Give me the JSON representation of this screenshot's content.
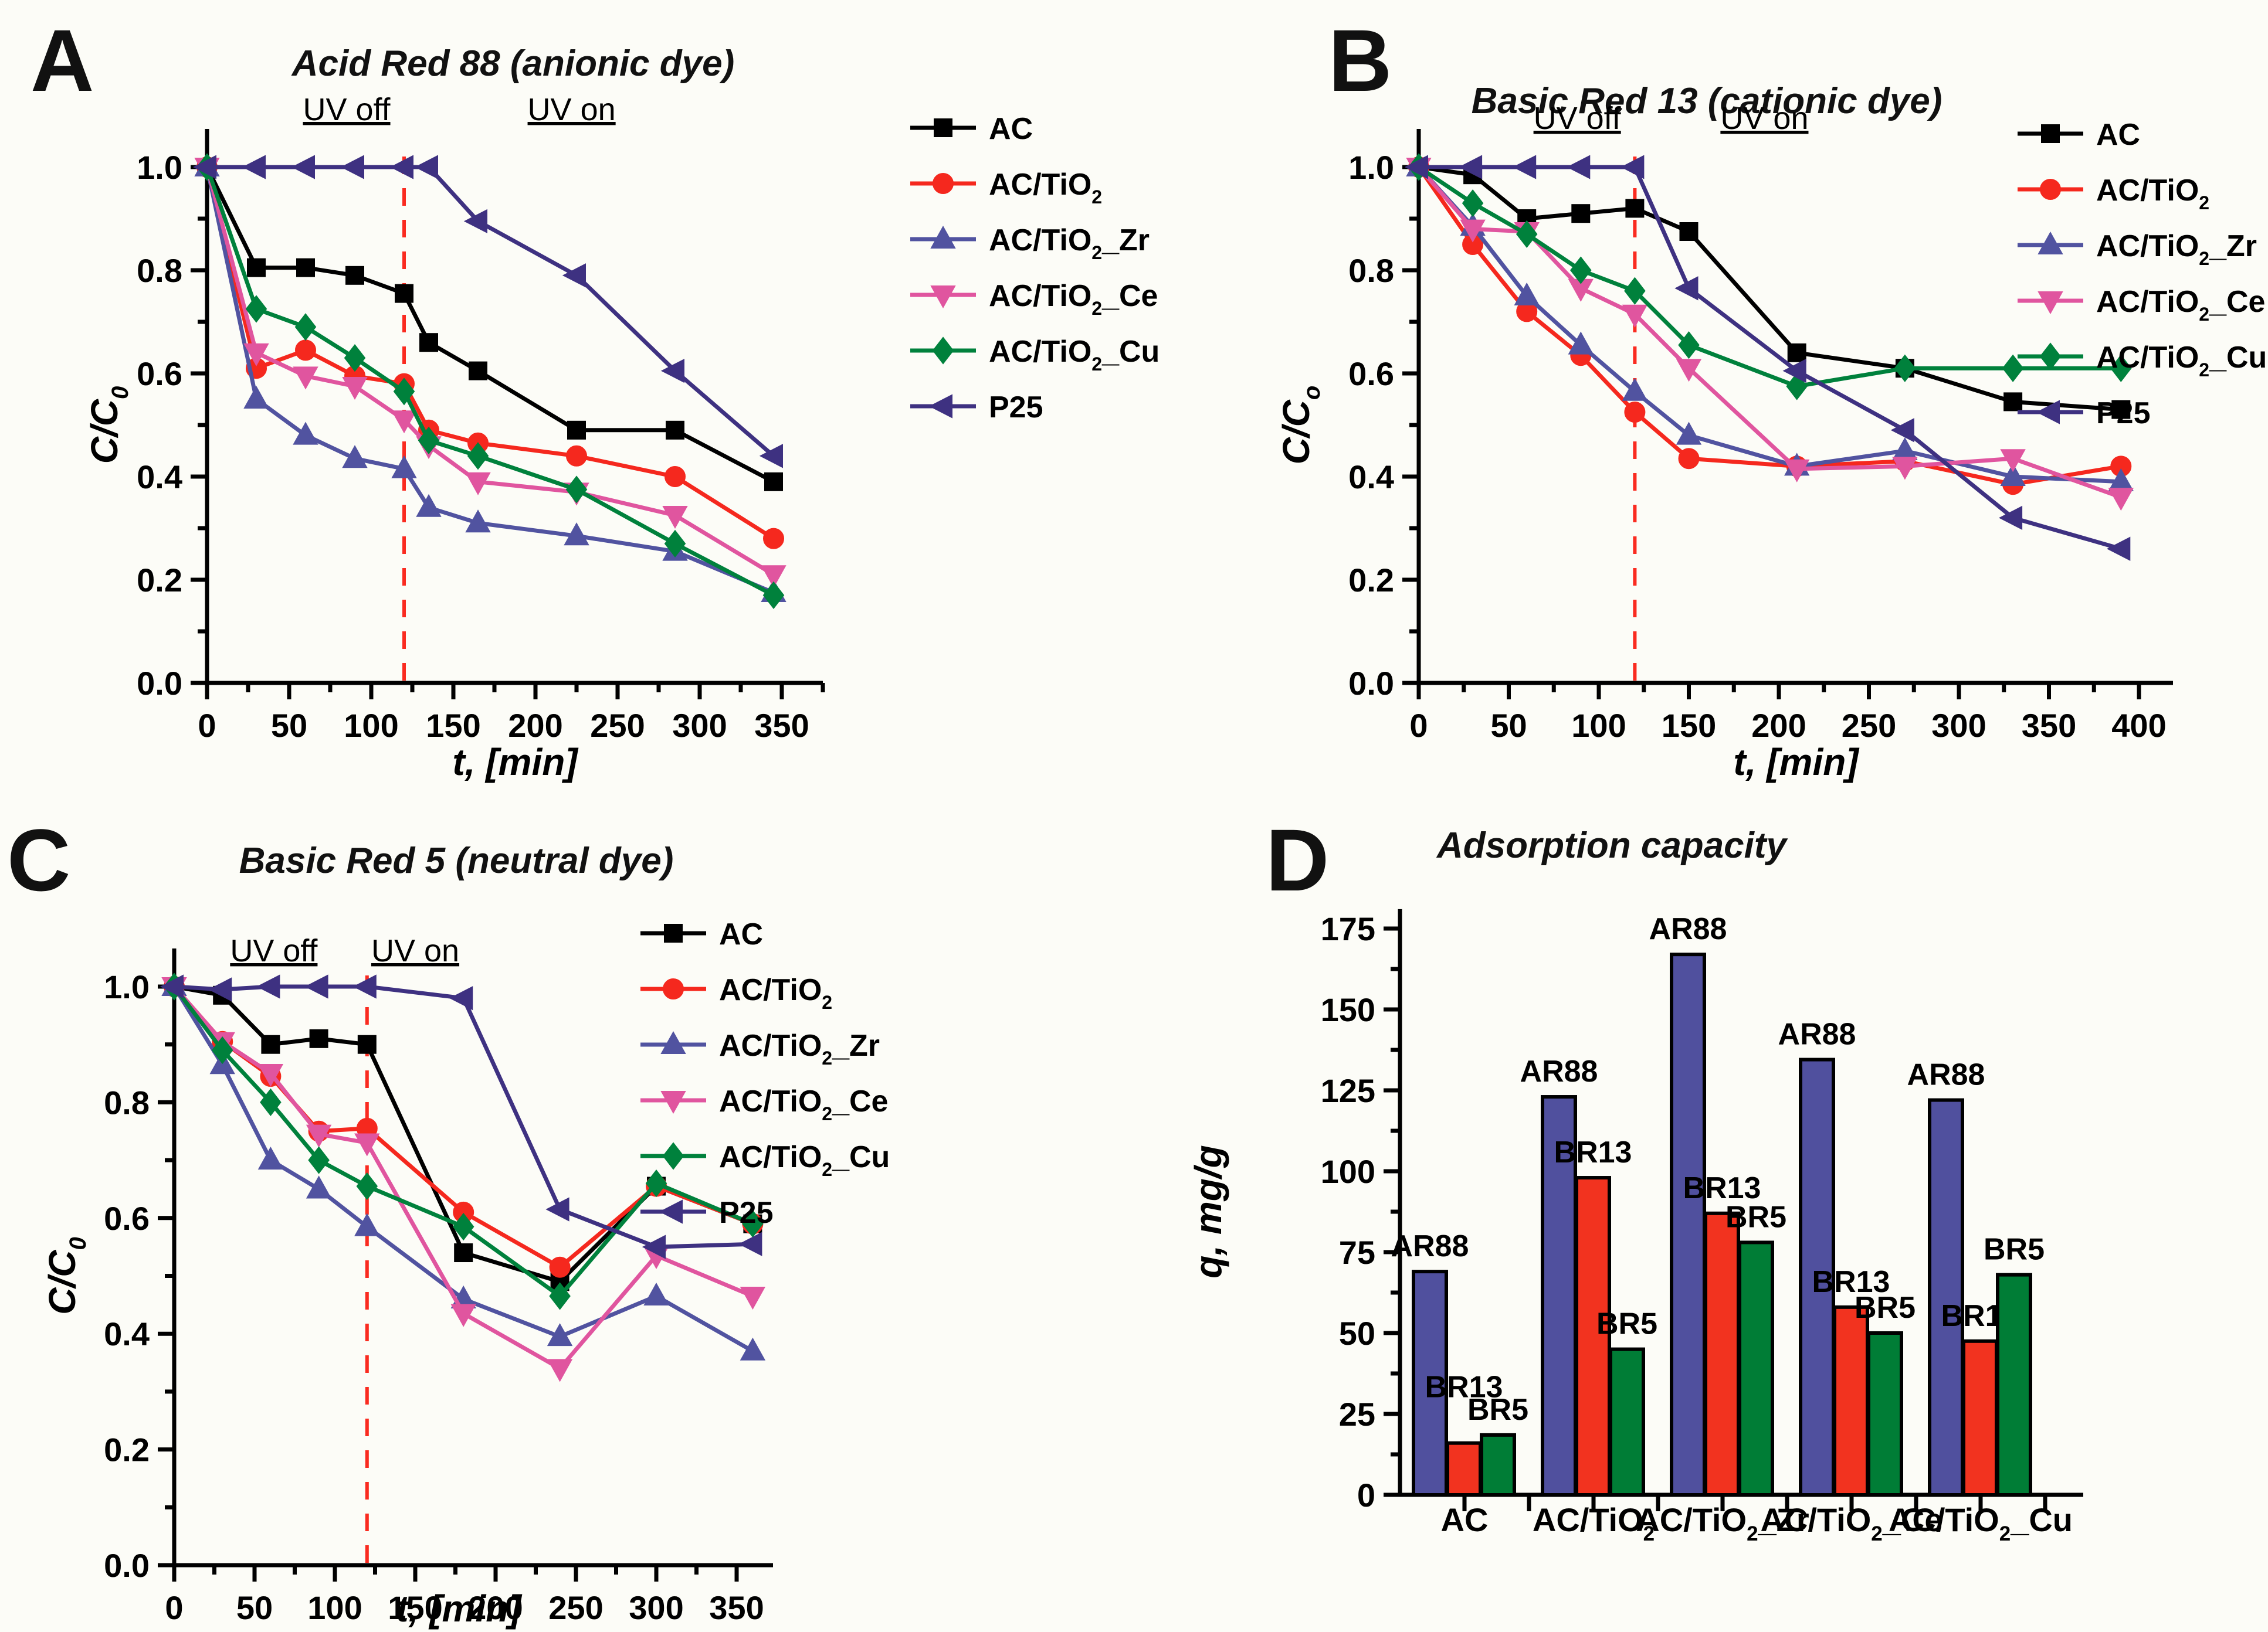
{
  "figure": {
    "background": "#fcfcf7"
  },
  "panel_letters": {
    "a": "A",
    "b": "B",
    "c": "C",
    "d": "D"
  },
  "colors": {
    "AC": "#000000",
    "AC_TiO2": "#f5281e",
    "AC_TiO2_Zr": "#5153a0",
    "AC_TiO2_Ce": "#e0559f",
    "AC_TiO2_Cu": "#00813c",
    "P25": "#3e3181",
    "dashed_line": "#fa2b20",
    "bar_AR88": "#50509e",
    "bar_BR13": "#f2331f",
    "bar_BR5": "#007d36"
  },
  "chart_data": [
    {
      "panel": "A",
      "type": "line",
      "title": "Acid Red 88 (anionic dye)",
      "xlabel": "t, [min]",
      "ylabel_base": "C/C",
      "ylabel_sub": "0",
      "xlim": [
        0,
        375
      ],
      "ylim": [
        0,
        1.05
      ],
      "xticks": [
        0,
        50,
        100,
        150,
        200,
        250,
        300,
        350
      ],
      "xminor_step": 25,
      "yticks": [
        0.0,
        0.2,
        0.4,
        0.6,
        0.8,
        1.0
      ],
      "yminor_step": 0.1,
      "dashed_x": 120,
      "annotations": [
        {
          "text": "UV off",
          "t": 85
        },
        {
          "text": "UV on",
          "t": 222
        }
      ],
      "x": [
        0,
        30,
        60,
        90,
        120,
        135,
        165,
        225,
        285,
        345
      ],
      "series": [
        {
          "name": "AC",
          "marker": "square",
          "color": "#000000",
          "values": [
            1.0,
            0.805,
            0.805,
            0.79,
            0.755,
            0.66,
            0.605,
            0.49,
            0.49,
            0.39
          ]
        },
        {
          "name": "AC/TiO2",
          "marker": "circle",
          "color": "#f5281e",
          "values": [
            1.0,
            0.61,
            0.645,
            0.595,
            0.58,
            0.49,
            0.465,
            0.44,
            0.4,
            0.28
          ]
        },
        {
          "name": "AC/TiO2_Zr",
          "marker": "triangle-up",
          "color": "#5153a0",
          "values": [
            1.0,
            0.55,
            0.48,
            0.435,
            0.415,
            0.34,
            0.31,
            0.285,
            0.255,
            0.175
          ]
        },
        {
          "name": "AC/TiO2_Ce",
          "marker": "triangle-down",
          "color": "#e0559f",
          "values": [
            1.0,
            0.64,
            0.595,
            0.575,
            0.51,
            0.46,
            0.39,
            0.37,
            0.325,
            0.21
          ]
        },
        {
          "name": "AC/TiO2_Cu",
          "marker": "diamond",
          "color": "#00813c",
          "values": [
            1.0,
            0.725,
            0.69,
            0.63,
            0.565,
            0.47,
            0.44,
            0.375,
            0.27,
            0.17
          ]
        },
        {
          "name": "P25",
          "marker": "triangle-left",
          "color": "#3e3181",
          "values": [
            1.0,
            1.0,
            1.0,
            1.0,
            1.0,
            1.0,
            0.895,
            0.79,
            0.605,
            0.44
          ]
        }
      ]
    },
    {
      "panel": "B",
      "type": "line",
      "title": "Basic Red 13 (cationic dye)",
      "xlabel": "t, [min]",
      "ylabel_base": "C/C",
      "ylabel_sub": "o",
      "xlim": [
        0,
        415
      ],
      "ylim": [
        0,
        1.05
      ],
      "xticks": [
        0,
        50,
        100,
        150,
        200,
        250,
        300,
        350,
        400
      ],
      "xminor_step": 25,
      "yticks": [
        0.0,
        0.2,
        0.4,
        0.6,
        0.8,
        1.0
      ],
      "yminor_step": 0.1,
      "dashed_x": 120,
      "annotations": [
        {
          "text": "UV off",
          "t": 88
        },
        {
          "text": "UV on",
          "t": 192
        }
      ],
      "x": [
        0,
        30,
        60,
        90,
        120,
        150,
        210,
        270,
        330,
        390
      ],
      "series": [
        {
          "name": "AC",
          "marker": "square",
          "color": "#000000",
          "values": [
            1.0,
            0.985,
            0.9,
            0.91,
            0.92,
            0.875,
            0.64,
            0.61,
            0.545,
            0.53
          ]
        },
        {
          "name": "AC/TiO2",
          "marker": "circle",
          "color": "#f5281e",
          "values": [
            1.0,
            0.85,
            0.72,
            0.635,
            0.525,
            0.435,
            0.42,
            0.43,
            0.385,
            0.42
          ]
        },
        {
          "name": "AC/TiO2_Zr",
          "marker": "triangle-up",
          "color": "#5153a0",
          "values": [
            1.0,
            0.885,
            0.75,
            0.655,
            0.565,
            0.48,
            0.42,
            0.45,
            0.4,
            0.39
          ]
        },
        {
          "name": "AC/TiO2_Ce",
          "marker": "triangle-down",
          "color": "#e0559f",
          "values": [
            1.0,
            0.88,
            0.875,
            0.765,
            0.715,
            0.61,
            0.415,
            0.42,
            0.435,
            0.36
          ]
        },
        {
          "name": "AC/TiO2_Cu",
          "marker": "diamond",
          "color": "#00813c",
          "values": [
            1.0,
            0.93,
            0.87,
            0.8,
            0.76,
            0.655,
            0.575,
            0.61,
            0.61,
            0.61
          ]
        },
        {
          "name": "P25",
          "marker": "triangle-left",
          "color": "#3e3181",
          "values": [
            1.0,
            1.0,
            1.0,
            1.0,
            1.0,
            0.765,
            0.605,
            0.49,
            0.32,
            0.26
          ]
        }
      ]
    },
    {
      "panel": "C",
      "type": "line",
      "title": "Basic Red 5 (neutral dye)",
      "xlabel": "t, [min]",
      "ylabel_base": "C/C",
      "ylabel_sub": "0",
      "xlim": [
        0,
        372
      ],
      "ylim": [
        0,
        1.05
      ],
      "xticks": [
        0,
        50,
        100,
        150,
        200,
        250,
        300,
        350
      ],
      "xminor_step": 25,
      "yticks": [
        0.0,
        0.2,
        0.4,
        0.6,
        0.8,
        1.0
      ],
      "yminor_step": 0.1,
      "dashed_x": 120,
      "annotations": [
        {
          "text": "UV off",
          "t": 62
        },
        {
          "text": "UV on",
          "t": 150
        }
      ],
      "x": [
        0,
        30,
        60,
        90,
        120,
        180,
        240,
        300,
        360
      ],
      "series": [
        {
          "name": "AC",
          "marker": "square",
          "color": "#000000",
          "values": [
            1.0,
            0.985,
            0.9,
            0.91,
            0.9,
            0.54,
            0.49,
            0.655,
            0.59
          ]
        },
        {
          "name": "AC/TiO2",
          "marker": "circle",
          "color": "#f5281e",
          "values": [
            1.0,
            0.905,
            0.845,
            0.75,
            0.755,
            0.61,
            0.515,
            0.655,
            0.59
          ]
        },
        {
          "name": "AC/TiO2_Zr",
          "marker": "triangle-up",
          "color": "#5153a0",
          "values": [
            1.0,
            0.865,
            0.7,
            0.65,
            0.585,
            0.46,
            0.395,
            0.465,
            0.37
          ]
        },
        {
          "name": "AC/TiO2_Ce",
          "marker": "triangle-down",
          "color": "#e0559f",
          "values": [
            1.0,
            0.905,
            0.85,
            0.745,
            0.73,
            0.435,
            0.34,
            0.535,
            0.465
          ]
        },
        {
          "name": "AC/TiO2_Cu",
          "marker": "diamond",
          "color": "#00813c",
          "values": [
            1.0,
            0.89,
            0.8,
            0.7,
            0.655,
            0.585,
            0.465,
            0.66,
            0.59
          ]
        },
        {
          "name": "P25",
          "marker": "triangle-left",
          "color": "#3e3181",
          "values": [
            1.0,
            0.995,
            1.0,
            1.0,
            1.0,
            0.98,
            0.615,
            0.55,
            0.555
          ]
        }
      ]
    },
    {
      "panel": "D",
      "type": "bar",
      "title": "Adsorption capacity",
      "ylabel": "q, mg/g",
      "ylim": [
        0,
        180
      ],
      "yticks": [
        0,
        25,
        50,
        75,
        100,
        125,
        150,
        175
      ],
      "yminor_step": 12.5,
      "categories": [
        "AC",
        "AC/TiO2",
        "AC/TiO2_Zr",
        "AC/TiO2_Ce",
        "AC/TiO2_Cu"
      ],
      "series": [
        {
          "name": "AR88",
          "color": "#50509e",
          "values": [
            69,
            123,
            167,
            134.5,
            122
          ]
        },
        {
          "name": "BR13",
          "color": "#f2331f",
          "values": [
            16,
            98,
            87,
            58,
            47.5
          ]
        },
        {
          "name": "BR5",
          "color": "#007d36",
          "values": [
            18.5,
            45,
            78,
            50,
            68
          ]
        }
      ]
    }
  ]
}
